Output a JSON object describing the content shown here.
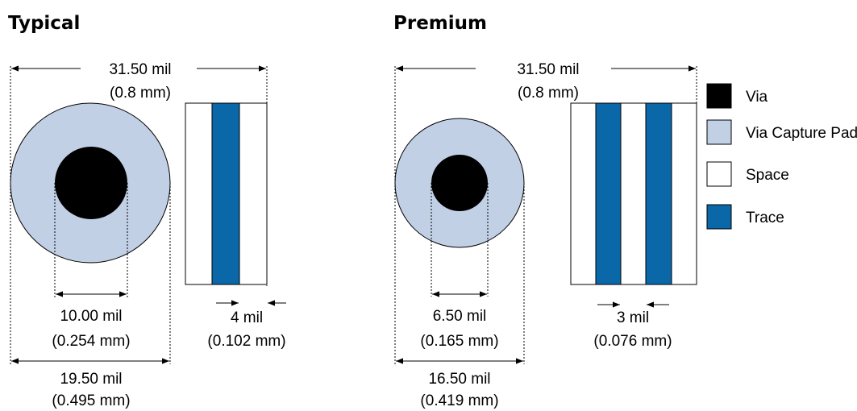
{
  "colors": {
    "via": "#000000",
    "via_capture_pad": "#c2d0e6",
    "space": "#ffffff",
    "trace": "#0a67a8"
  },
  "typical": {
    "title": "Typical",
    "overall_width": "31.50 mil",
    "overall_width_mm": "(0.8 mm)",
    "via_diameter": "10.00 mil",
    "via_diameter_mm": "(0.254 mm)",
    "pad_diameter": "19.50 mil",
    "pad_diameter_mm": "(0.495 mm)",
    "trace_space": "4 mil",
    "trace_space_mm": "(0.102 mm)"
  },
  "premium": {
    "title": "Premium",
    "overall_width": "31.50 mil",
    "overall_width_mm": "(0.8 mm)",
    "via_diameter": "6.50 mil",
    "via_diameter_mm": "(0.165 mm)",
    "pad_diameter": "16.50 mil",
    "pad_diameter_mm": "(0.419 mm)",
    "trace_space": "3 mil",
    "trace_space_mm": "(0.076 mm)"
  },
  "legend": [
    {
      "label": "Via",
      "color_key": "via"
    },
    {
      "label": "Via Capture Pad",
      "color_key": "via_capture_pad"
    },
    {
      "label": "Space",
      "color_key": "space"
    },
    {
      "label": "Trace",
      "color_key": "trace"
    }
  ]
}
